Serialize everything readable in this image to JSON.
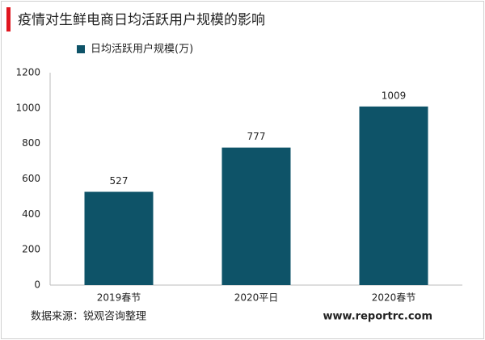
{
  "chart_data": {
    "type": "bar",
    "title": "疫情对生鲜电商日均活跃用户规模的影响",
    "categories": [
      "2019春节",
      "2020平日",
      "2020春节"
    ],
    "series": [
      {
        "name": "日均活跃用户规模(万)",
        "color": "#0e5368",
        "values": [
          527,
          777,
          1009
        ]
      }
    ],
    "ylim": [
      0,
      1200
    ],
    "yticks": [
      0,
      200,
      400,
      600,
      800,
      1000,
      1200
    ],
    "grid": false,
    "data_labels": true
  },
  "footer": {
    "source": "数据来源：锐观咨询整理",
    "website": "www.reportrc.com"
  }
}
